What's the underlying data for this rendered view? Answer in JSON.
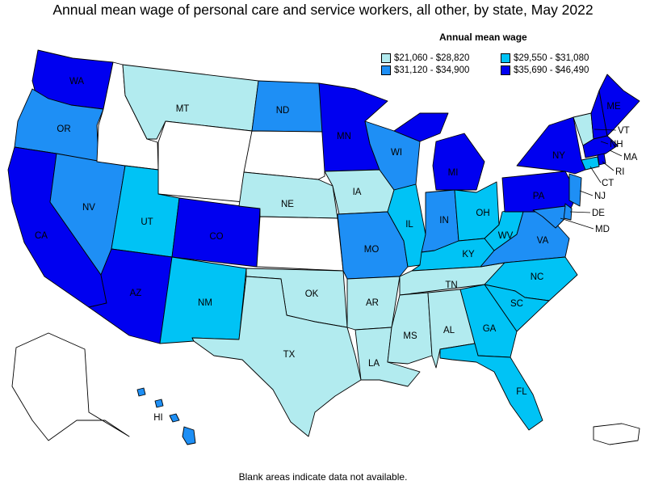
{
  "title": "Annual mean wage of personal care and service workers, all other, by state, May 2022",
  "legend": {
    "title": "Annual mean wage",
    "items": [
      {
        "label": "$21,060 - $28,820",
        "color": "#b2ebef"
      },
      {
        "label": "$29,550 - $31,080",
        "color": "#00c3f5"
      },
      {
        "label": "$31,120 - $34,900",
        "color": "#1e8ff5"
      },
      {
        "label": "$35,690 - $46,490",
        "color": "#0000f0"
      }
    ]
  },
  "footnote": "Blank areas indicate data not available.",
  "states": {
    "WA": {
      "label": "WA",
      "bin": 3
    },
    "OR": {
      "label": "OR",
      "bin": 2
    },
    "CA": {
      "label": "CA",
      "bin": 3
    },
    "NV": {
      "label": "NV",
      "bin": 2
    },
    "ID": {
      "label": "",
      "bin": null
    },
    "MT": {
      "label": "MT",
      "bin": 0
    },
    "WY": {
      "label": "",
      "bin": null
    },
    "UT": {
      "label": "UT",
      "bin": 1
    },
    "AZ": {
      "label": "AZ",
      "bin": 3
    },
    "CO": {
      "label": "CO",
      "bin": 3
    },
    "NM": {
      "label": "NM",
      "bin": 1
    },
    "ND": {
      "label": "ND",
      "bin": 2
    },
    "SD": {
      "label": "",
      "bin": null
    },
    "NE": {
      "label": "NE",
      "bin": 0
    },
    "KS": {
      "label": "",
      "bin": null
    },
    "OK": {
      "label": "OK",
      "bin": 0
    },
    "TX": {
      "label": "TX",
      "bin": 0
    },
    "MN": {
      "label": "MN",
      "bin": 3
    },
    "IA": {
      "label": "IA",
      "bin": 0
    },
    "MO": {
      "label": "MO",
      "bin": 2
    },
    "AR": {
      "label": "AR",
      "bin": 0
    },
    "LA": {
      "label": "LA",
      "bin": 0
    },
    "WI": {
      "label": "WI",
      "bin": 2
    },
    "IL": {
      "label": "IL",
      "bin": 1
    },
    "MS": {
      "label": "MS",
      "bin": 0
    },
    "MI": {
      "label": "MI",
      "bin": 3
    },
    "IN": {
      "label": "IN",
      "bin": 2
    },
    "KY": {
      "label": "KY",
      "bin": 1
    },
    "TN": {
      "label": "TN",
      "bin": 0
    },
    "AL": {
      "label": "AL",
      "bin": 0
    },
    "OH": {
      "label": "OH",
      "bin": 1
    },
    "WV": {
      "label": "WV",
      "bin": 1
    },
    "VA": {
      "label": "VA",
      "bin": 2
    },
    "NC": {
      "label": "NC",
      "bin": 1
    },
    "SC": {
      "label": "SC",
      "bin": 1
    },
    "GA": {
      "label": "GA",
      "bin": 1
    },
    "FL": {
      "label": "FL",
      "bin": 1
    },
    "PA": {
      "label": "PA",
      "bin": 3
    },
    "NY": {
      "label": "NY",
      "bin": 3
    },
    "VT": {
      "label": "VT",
      "bin": 0
    },
    "NH": {
      "label": "NH",
      "bin": 3
    },
    "ME": {
      "label": "ME",
      "bin": 3
    },
    "MA": {
      "label": "MA",
      "bin": 3
    },
    "RI": {
      "label": "RI",
      "bin": 3
    },
    "CT": {
      "label": "CT",
      "bin": 1
    },
    "NJ": {
      "label": "NJ",
      "bin": 2
    },
    "DE": {
      "label": "DE",
      "bin": 2
    },
    "MD": {
      "label": "MD",
      "bin": 2
    },
    "AK": {
      "label": "",
      "bin": null
    },
    "HI": {
      "label": "HI",
      "bin": 2
    },
    "PR": {
      "label": "",
      "bin": null
    }
  }
}
